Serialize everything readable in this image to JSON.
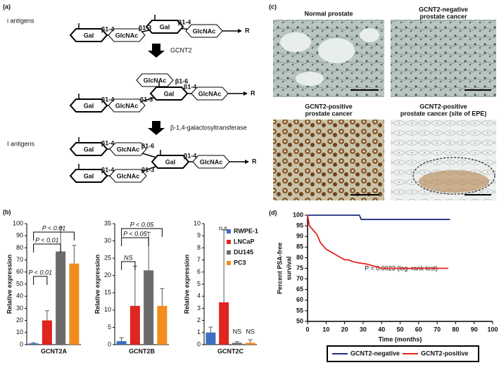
{
  "panel_labels": [
    "(a)",
    "(b)",
    "(c)",
    "(d)"
  ],
  "diagram": {
    "group_labels": [
      "i antigens",
      "I antigens"
    ],
    "enzymes": [
      "GCNT2",
      "β-1,4-galactosyltransferase"
    ],
    "nodes": [
      "Gal",
      "GlcNAc",
      "Gal",
      "GlcNAc",
      "GlcNAc",
      "Gal",
      "GlcNAc",
      "Gal",
      "GlcNAc",
      "Gal",
      "GlcNAc",
      "Gal",
      "GlcNAc",
      "Gal",
      "GlcNAc"
    ],
    "links": [
      "β1-4",
      "β1-3",
      "β1-4",
      "β1-6",
      "β1-4",
      "β1-3",
      "β1-4",
      "β1-4",
      "β1-6",
      "β1-4",
      "β1-3",
      "β1-4"
    ],
    "reducing_ends": [
      "R",
      "R",
      "R"
    ]
  },
  "images": [
    {
      "title": [
        "Normal prostate"
      ]
    },
    {
      "title": [
        "GCNT2-negative",
        "prostate cancer"
      ]
    },
    {
      "title": [
        "GCNT2-positive",
        "prostate cancer"
      ]
    },
    {
      "title": [
        "GCNT2-positive",
        "prostate cancer (site of EPE)"
      ]
    }
  ],
  "chart_data": [
    {
      "type": "bar",
      "xlabel": "GCNT2A",
      "ylabel": "Relative expression",
      "ylim": [
        0,
        100
      ],
      "yticks": [
        0,
        10,
        20,
        30,
        40,
        50,
        60,
        70,
        80,
        90,
        100
      ],
      "values": [
        1,
        20,
        77,
        67
      ],
      "errors": [
        0.5,
        8,
        20,
        15
      ],
      "colors": [
        "#3a6fc4",
        "#e0241f",
        "#6b6b6b",
        "#f28c1c"
      ],
      "annotations": [
        "P < 0.01",
        "P < 0.01",
        "P < 0.01"
      ]
    },
    {
      "type": "bar",
      "xlabel": "GCNT2B",
      "ylabel": "Relative expression",
      "ylim": [
        0,
        35
      ],
      "yticks": [
        0,
        5,
        10,
        15,
        20,
        25,
        30,
        35
      ],
      "values": [
        1,
        11.2,
        21.5,
        11.2
      ],
      "errors": [
        1,
        11.5,
        11,
        5
      ],
      "colors": [
        "#3a6fc4",
        "#e0241f",
        "#6b6b6b",
        "#f28c1c"
      ],
      "annotations": [
        "P < 0.05",
        "P < 0.05",
        "NS"
      ]
    },
    {
      "type": "bar",
      "xlabel": "GCNT2C",
      "ylabel": "Relative expression",
      "ylim": [
        0,
        10
      ],
      "yticks": [
        0,
        1,
        2,
        3,
        4,
        5,
        6,
        7,
        8,
        9,
        10
      ],
      "values": [
        1,
        3.5,
        0.15,
        0.15
      ],
      "errors": [
        0.45,
        6,
        0.1,
        0.25
      ],
      "colors": [
        "#3a6fc4",
        "#e0241f",
        "#6b6b6b",
        "#f28c1c"
      ],
      "annotations": [
        "n.s.",
        "NS",
        "NS"
      ],
      "legend": [
        "RWPE-1",
        "LNCaP",
        "DU145",
        "PC3"
      ]
    },
    {
      "type": "line",
      "xlabel": "Time (months)",
      "ylabel": [
        "Percent PSA-free",
        "survival"
      ],
      "annotation": "P = 0.0023 (log–rank test)",
      "xlim": [
        0,
        100
      ],
      "xticks": [
        0,
        10,
        20,
        30,
        40,
        50,
        60,
        70,
        80,
        90,
        100
      ],
      "ylim": [
        50,
        100
      ],
      "yticks": [
        50,
        55,
        60,
        65,
        70,
        75,
        80,
        85,
        90,
        95,
        100
      ],
      "series": [
        {
          "name": "GCNT2-negative",
          "color": "#1f2f80",
          "x": [
            0,
            28,
            29,
            77
          ],
          "values": [
            100,
            100,
            98,
            98
          ]
        },
        {
          "name": "GCNT2-positive",
          "color": "#e8231e",
          "x": [
            0,
            1,
            2,
            3,
            4,
            5,
            6,
            7,
            8,
            9,
            10,
            12,
            14,
            16,
            18,
            20,
            22,
            25,
            28,
            32,
            36,
            40,
            45,
            76
          ],
          "values": [
            100,
            95,
            94,
            93,
            92,
            91,
            89,
            87,
            86,
            85,
            84,
            83,
            82,
            81,
            80,
            79,
            79,
            78,
            77.5,
            77,
            76,
            75,
            75,
            75
          ]
        }
      ]
    }
  ]
}
